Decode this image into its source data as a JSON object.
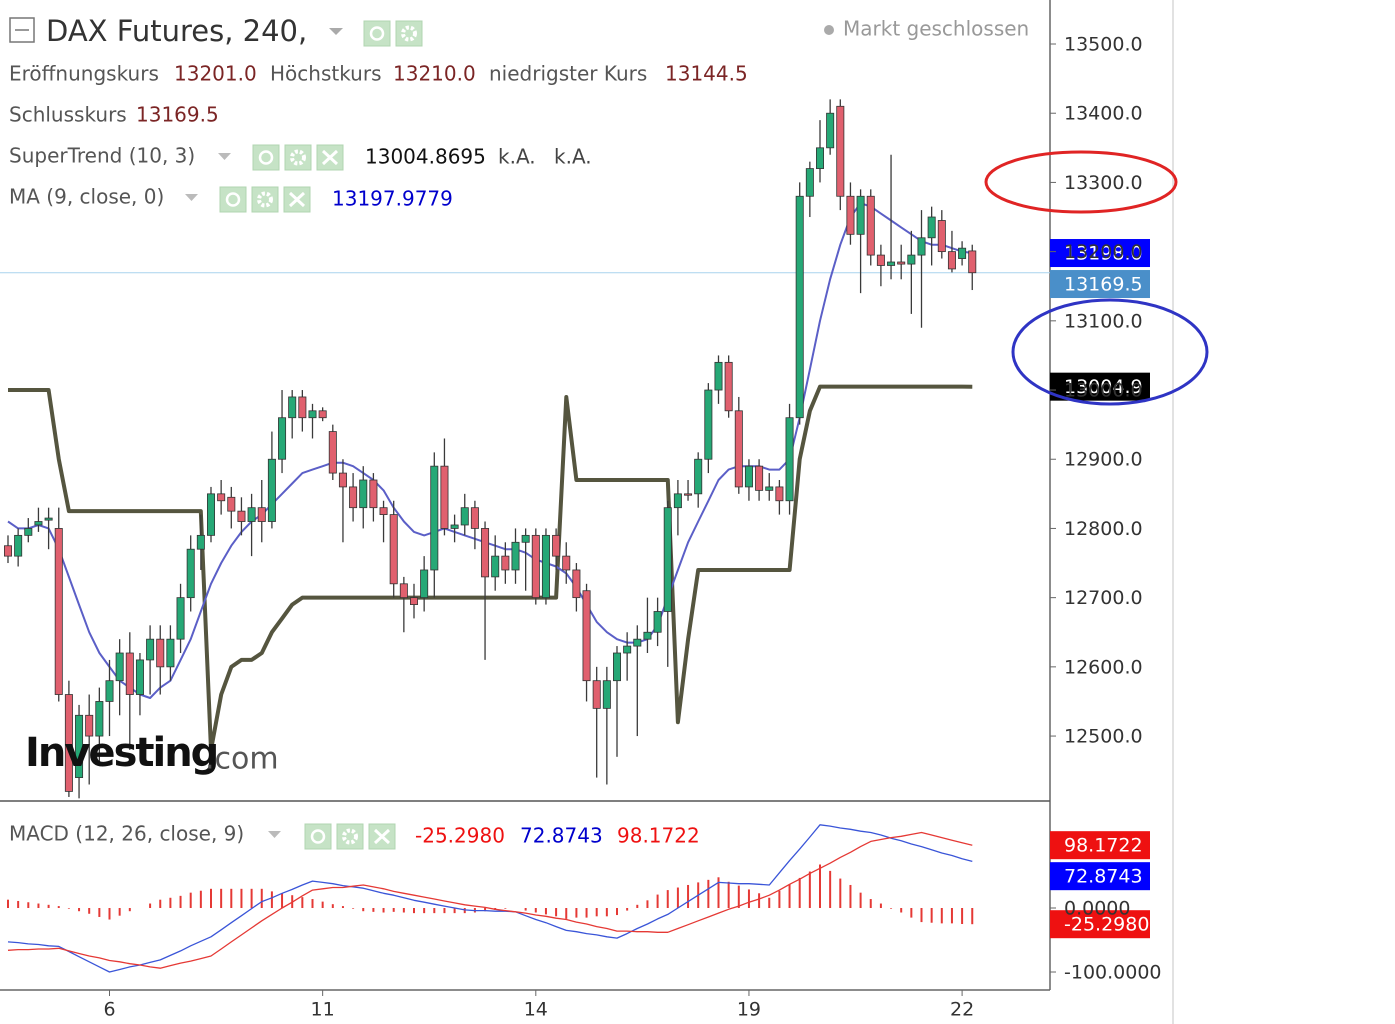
{
  "chart_data": [
    {
      "type": "candlestick",
      "title": "DAX Futures, 240,",
      "status": "Markt geschlossen",
      "watermark": [
        "Investing",
        ".com"
      ],
      "ohlc_legend": [
        {
          "label": "Eröffnungskurs",
          "value": "13201.0"
        },
        {
          "label": "Höchstkurs",
          "value": "13210.0"
        },
        {
          "label": "niedrigster Kurs",
          "value": "13144.5"
        },
        {
          "label": "Schlusskurs",
          "value": "13169.5"
        }
      ],
      "categories": [
        null,
        null,
        null,
        null,
        null,
        null,
        null,
        null,
        null,
        null,
        "6",
        null,
        null,
        null,
        null,
        null,
        null,
        null,
        null,
        null,
        null,
        null,
        null,
        null,
        null,
        null,
        null,
        null,
        null,
        null,
        null,
        "11",
        null,
        null,
        null,
        null,
        null,
        null,
        null,
        null,
        null,
        null,
        null,
        null,
        null,
        null,
        null,
        null,
        null,
        null,
        null,
        null,
        "14",
        null,
        null,
        null,
        null,
        null,
        null,
        null,
        null,
        null,
        null,
        null,
        null,
        null,
        null,
        null,
        null,
        null,
        null,
        null,
        null,
        "19",
        null,
        null,
        null,
        null,
        null,
        null,
        null,
        null,
        null,
        null,
        null,
        null,
        null,
        null,
        null,
        null,
        null,
        null,
        null,
        null,
        "22",
        null
      ],
      "open": [
        12775,
        12760,
        12790,
        12805,
        12812,
        12800,
        12560,
        12440,
        12530,
        12500,
        12550,
        12580,
        12620,
        12560,
        12610,
        12640,
        12600,
        12640,
        12700,
        12770,
        12790,
        12850,
        12845,
        12825,
        12810,
        12830,
        12810,
        12900,
        12960,
        12990,
        12960,
        12970,
        12940,
        12880,
        12860,
        12830,
        12870,
        12830,
        12820,
        12720,
        12700,
        12700,
        12740,
        12890,
        12800,
        12805,
        12830,
        12800,
        12730,
        12760,
        12740,
        12780,
        12790,
        12700,
        12790,
        12760,
        12740,
        12710,
        12580,
        12540,
        12580,
        12620,
        12630,
        12640,
        12650,
        12680,
        12830,
        12850,
        12850,
        12900,
        13000,
        13040,
        12970,
        12860,
        12890,
        12855,
        12860,
        12840,
        12960,
        13280,
        13320,
        13350,
        13410,
        13280,
        13225,
        13280,
        13195,
        13180,
        13185,
        13182,
        13195,
        13220,
        13245,
        13200,
        13190,
        13201
      ],
      "high": [
        12790,
        12800,
        12815,
        12830,
        12830,
        12830,
        12580,
        12545,
        12560,
        12570,
        12610,
        12640,
        12650,
        12620,
        12660,
        12660,
        12660,
        12720,
        12790,
        12820,
        12860,
        12870,
        12860,
        12845,
        12850,
        12870,
        12940,
        13000,
        13000,
        13000,
        12980,
        12975,
        12950,
        12900,
        12880,
        12890,
        12880,
        12840,
        12840,
        12730,
        12720,
        12760,
        12910,
        12930,
        12820,
        12850,
        12840,
        12810,
        12790,
        12780,
        12800,
        12800,
        12800,
        12800,
        12800,
        12780,
        12750,
        12720,
        12600,
        12600,
        12630,
        12650,
        12660,
        12700,
        12700,
        12840,
        12870,
        12870,
        12910,
        13010,
        13050,
        13050,
        12990,
        12900,
        12900,
        12880,
        12870,
        12980,
        13300,
        13330,
        13390,
        13420,
        13420,
        13300,
        13290,
        13290,
        13210,
        13340,
        13210,
        13230,
        13260,
        13265,
        13260,
        13230,
        13215,
        13210
      ],
      "low": [
        12750,
        12745,
        12780,
        12795,
        12770,
        12550,
        12412,
        12410,
        12430,
        12460,
        12500,
        12530,
        12480,
        12530,
        12560,
        12560,
        12580,
        12620,
        12680,
        12740,
        12780,
        12820,
        12800,
        12790,
        12760,
        12780,
        12800,
        12880,
        12930,
        12940,
        12930,
        12955,
        12870,
        12780,
        12810,
        12800,
        12810,
        12780,
        12700,
        12650,
        12670,
        12680,
        12700,
        12790,
        12780,
        12790,
        12770,
        12610,
        12710,
        12720,
        12720,
        12710,
        12690,
        12690,
        12740,
        12720,
        12680,
        12550,
        12440,
        12430,
        12470,
        12580,
        12500,
        12620,
        12630,
        12600,
        12790,
        12840,
        12830,
        12880,
        12980,
        12960,
        12850,
        12840,
        12840,
        12840,
        12820,
        12820,
        12950,
        13250,
        13300,
        13340,
        13260,
        13210,
        13140,
        13180,
        13150,
        13160,
        13160,
        13110,
        13090,
        13180,
        13190,
        13170,
        13180,
        13144.5
      ],
      "close": [
        12760,
        12790,
        12800,
        12810,
        12815,
        12560,
        12420,
        12530,
        12500,
        12550,
        12580,
        12620,
        12560,
        12610,
        12640,
        12600,
        12640,
        12700,
        12770,
        12790,
        12850,
        12840,
        12825,
        12810,
        12830,
        12810,
        12900,
        12960,
        12990,
        12960,
        12970,
        12960,
        12880,
        12860,
        12830,
        12870,
        12830,
        12820,
        12720,
        12700,
        12690,
        12740,
        12890,
        12800,
        12805,
        12830,
        12800,
        12730,
        12760,
        12740,
        12780,
        12790,
        12700,
        12790,
        12760,
        12740,
        12700,
        12580,
        12540,
        12580,
        12620,
        12630,
        12640,
        12650,
        12680,
        12830,
        12850,
        12848,
        12900,
        13000,
        13040,
        12970,
        12860,
        12890,
        12855,
        12860,
        12840,
        12960,
        13280,
        13320,
        13350,
        13400,
        13280,
        13225,
        13280,
        13195,
        13180,
        13185,
        13182,
        13195,
        13220,
        13250,
        13200,
        13175,
        13205,
        13169.5
      ],
      "up_color": "#26a876",
      "down_color": "#e0606e",
      "wick_color": "#3a3a3a",
      "close_line_color": "#a9d3ee",
      "close_label_color": "#4a8fc9",
      "series": [
        {
          "name": "SuperTrend (10, 3)",
          "color": "#55553f",
          "width": 4,
          "values": [
            13000,
            13000,
            13000,
            13000,
            13000,
            12900,
            12825,
            12825,
            12825,
            12825,
            12825,
            12825,
            12825,
            12825,
            12825,
            12825,
            12825,
            12825,
            12825,
            12825,
            12480,
            12560,
            12600,
            12610,
            12610,
            12620,
            12650,
            12670,
            12690,
            12700,
            12700,
            12700,
            12700,
            12700,
            12700,
            12700,
            12700,
            12700,
            12700,
            12700,
            12700,
            12700,
            12700,
            12700,
            12700,
            12700,
            12700,
            12700,
            12700,
            12700,
            12700,
            12700,
            12700,
            12700,
            12700,
            12990,
            12870,
            12870,
            12870,
            12870,
            12870,
            12870,
            12870,
            12870,
            12870,
            12870,
            12520,
            12640,
            12740,
            12740,
            12740,
            12740,
            12740,
            12740,
            12740,
            12740,
            12740,
            12740,
            12900,
            12970,
            13005,
            13005,
            13005,
            13005,
            13005,
            13005,
            13005,
            13005,
            13005,
            13005,
            13005,
            13005,
            13005,
            13005,
            13005,
            13004.8695
          ],
          "legend_values": [
            "13004.8695",
            "k.A.",
            "k.A."
          ],
          "last_label": "13004.9",
          "label_color": "#000000"
        },
        {
          "name": "MA (9, close, 0)",
          "color": "#5b5fc7",
          "width": 2,
          "values": [
            12810,
            12800,
            12800,
            12805,
            12800,
            12770,
            12730,
            12690,
            12650,
            12620,
            12600,
            12580,
            12570,
            12560,
            12555,
            12570,
            12580,
            12610,
            12640,
            12680,
            12720,
            12750,
            12775,
            12795,
            12810,
            12820,
            12835,
            12850,
            12865,
            12880,
            12885,
            12890,
            12895,
            12895,
            12890,
            12880,
            12870,
            12855,
            12830,
            12810,
            12795,
            12790,
            12795,
            12800,
            12795,
            12790,
            12785,
            12780,
            12775,
            12770,
            12770,
            12765,
            12755,
            12750,
            12745,
            12735,
            12715,
            12690,
            12665,
            12650,
            12640,
            12635,
            12635,
            12640,
            12660,
            12700,
            12740,
            12780,
            12810,
            12840,
            12870,
            12885,
            12890,
            12890,
            12890,
            12885,
            12885,
            12900,
            12960,
            13030,
            13100,
            13160,
            13210,
            13250,
            13270,
            13265,
            13255,
            13245,
            13235,
            13225,
            13215,
            13210,
            13210,
            13205,
            13200,
            13197.9779
          ],
          "legend_values": [
            "13197.9779"
          ],
          "last_label": "13198.0",
          "label_color": "#0000ff"
        }
      ],
      "ylim": [
        12407.6,
        13563.6
      ],
      "yticks": [
        {
          "value": 12500,
          "label": "12500.0"
        },
        {
          "value": 12600,
          "label": "12600.0"
        },
        {
          "value": 12700,
          "label": "12700.0"
        },
        {
          "value": 12800,
          "label": "12800.0"
        },
        {
          "value": 12900,
          "label": "12900.0"
        },
        {
          "value": 13000,
          "label": "13000.0"
        },
        {
          "value": 13100,
          "label": "13100.0"
        },
        {
          "value": 13200,
          "label": "13200.0"
        },
        {
          "value": 13300,
          "label": "13300.0"
        },
        {
          "value": 13400,
          "label": "13400.0"
        },
        {
          "value": 13500,
          "label": "13500.0"
        }
      ]
    },
    {
      "type": "macd",
      "title": "MACD (12, 26, close, 9)",
      "series": [
        {
          "style": "histogram",
          "color": "#e53935",
          "label": "-25.2980",
          "values": [
            13,
            11,
            9,
            7,
            5,
            3,
            -1,
            -5,
            -9,
            -14,
            -18,
            -12,
            -5,
            0,
            7,
            13,
            16,
            19,
            24,
            27,
            30,
            30,
            30,
            30,
            30,
            30,
            26,
            23,
            20,
            17,
            14,
            10,
            6,
            3,
            -1,
            -5,
            -6,
            -7,
            -6,
            -7,
            -8,
            -8,
            -8,
            -8,
            -8,
            -8,
            -7,
            -5,
            -3,
            -1,
            0,
            -4,
            -7,
            -10,
            -13,
            -17,
            -15,
            -15,
            -13,
            -13,
            -11,
            -4,
            5,
            12,
            21,
            28,
            32,
            36,
            40,
            44,
            48,
            41,
            35,
            29,
            23,
            16,
            27,
            37,
            47,
            57,
            68,
            58,
            46,
            36,
            24,
            14,
            7,
            -1,
            -7,
            -15,
            -22,
            -23,
            -24,
            -24,
            -25,
            -25.298
          ]
        },
        {
          "style": "line",
          "color": "#3a55d8",
          "label": "72.8743",
          "values": [
            -53,
            -54,
            -56,
            -57,
            -59,
            -60,
            -68,
            -76,
            -84,
            -92,
            -100,
            -96,
            -92,
            -89,
            -85,
            -81,
            -74,
            -67,
            -59,
            -52,
            -45,
            -34,
            -23,
            -12,
            -1,
            10,
            16,
            23,
            29,
            36,
            42,
            40,
            38,
            35,
            33,
            31,
            27,
            23,
            20,
            16,
            12,
            9,
            6,
            3,
            0,
            -3,
            -4,
            -4,
            -5,
            -5,
            -6,
            -12,
            -18,
            -23,
            -29,
            -35,
            -37,
            -40,
            -42,
            -45,
            -47,
            -40,
            -32,
            -25,
            -17,
            -10,
            0,
            10,
            20,
            30,
            40,
            39,
            38,
            38,
            37,
            36,
            55,
            74,
            92,
            111,
            130,
            128,
            125,
            123,
            120,
            118,
            114,
            109,
            105,
            100,
            96,
            91,
            86,
            82,
            77,
            72.8743
          ]
        },
        {
          "style": "line",
          "color": "#e53935",
          "label": "98.1722",
          "values": [
            -66,
            -65,
            -65,
            -64,
            -64,
            -63,
            -67,
            -71,
            -75,
            -78,
            -82,
            -84,
            -87,
            -89,
            -92,
            -94,
            -90,
            -86,
            -83,
            -79,
            -75,
            -64,
            -53,
            -42,
            -31,
            -20,
            -10,
            0,
            9,
            19,
            28,
            30,
            32,
            32,
            34,
            36,
            33,
            30,
            26,
            23,
            20,
            17,
            14,
            11,
            8,
            5,
            3,
            1,
            -2,
            -4,
            -6,
            -8,
            -11,
            -13,
            -16,
            -18,
            -22,
            -25,
            -29,
            -32,
            -36,
            -36,
            -37,
            -37,
            -38,
            -38,
            -32,
            -26,
            -20,
            -14,
            -8,
            -2,
            3,
            9,
            14,
            20,
            28,
            37,
            45,
            54,
            62,
            70,
            79,
            87,
            96,
            104,
            107,
            110,
            112,
            115,
            118,
            114,
            110,
            106,
            102,
            98.1722
          ]
        }
      ],
      "label_colors": [
        "#ee1111",
        "#0000ff",
        "#ee1111"
      ],
      "ylim": [
        -128.1,
        168.75
      ],
      "yticks": [
        {
          "value": 0,
          "label": "0.0000"
        },
        {
          "value": -100,
          "label": "-100.0000"
        }
      ]
    }
  ]
}
